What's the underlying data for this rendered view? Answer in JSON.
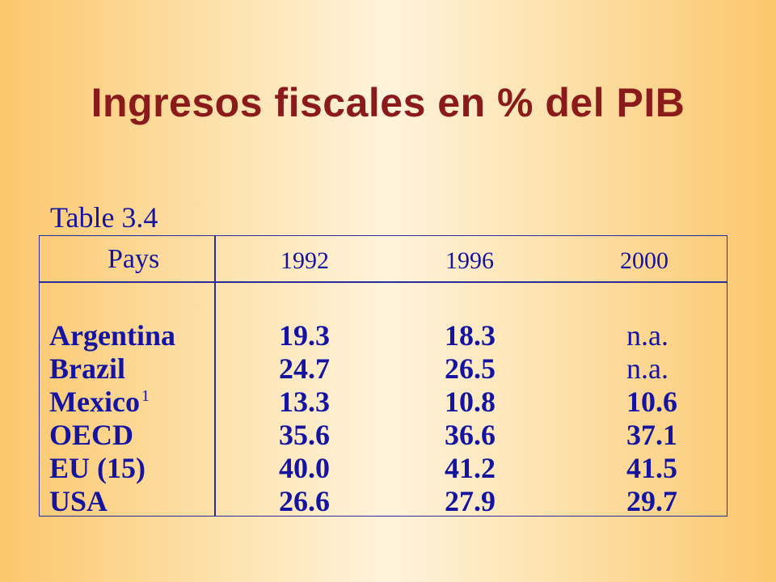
{
  "title": "Ingresos fiscales en % del PIB",
  "table": {
    "caption": "Table 3.4",
    "headers": [
      "Pays",
      "1992",
      "1996",
      "2000"
    ],
    "rows": [
      {
        "country": "Argentina",
        "note": "",
        "v1992": "19.3",
        "v1996": "18.3",
        "v2000": "n.a."
      },
      {
        "country": "Brazil",
        "note": "",
        "v1992": "24.7",
        "v1996": "26.5",
        "v2000": "n.a."
      },
      {
        "country": "Mexico",
        "note": "1",
        "v1992": "13.3",
        "v1996": "10.8",
        "v2000": "10.6"
      },
      {
        "country": "OECD",
        "note": "",
        "v1992": "35.6",
        "v1996": "36.6",
        "v2000": "37.1"
      },
      {
        "country": "EU (15)",
        "note": "",
        "v1992": "40.0",
        "v1996": "41.2",
        "v2000": "41.5"
      },
      {
        "country": "USA",
        "note": "",
        "v1992": "26.6",
        "v1996": "27.9",
        "v2000": "29.7"
      }
    ]
  },
  "colors": {
    "title": "#8b1a1a",
    "table_text": "#1414a0",
    "table_border": "#2a2a9a"
  }
}
